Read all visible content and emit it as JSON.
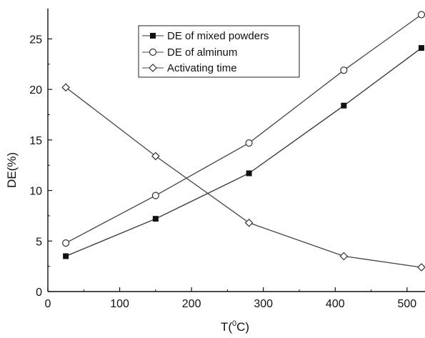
{
  "chart_data": {
    "type": "line",
    "title": "",
    "xlabel_main": "T(",
    "xlabel_sup": "0",
    "xlabel_tail": "C)",
    "ylabel": "DE(%)",
    "xlim": [
      0,
      525
    ],
    "ylim": [
      0,
      28
    ],
    "xticks": [
      0,
      100,
      200,
      300,
      400,
      500
    ],
    "yticks": [
      0,
      5,
      10,
      15,
      20,
      25
    ],
    "grid": false,
    "legend_position": "top-center",
    "series": [
      {
        "name": "DE of mixed powders",
        "marker": "filled-square",
        "color": "#333333",
        "x": [
          25,
          150,
          280,
          412,
          520
        ],
        "y": [
          3.5,
          7.2,
          11.7,
          18.4,
          24.1
        ]
      },
      {
        "name": "DE of alminum",
        "marker": "open-circle",
        "color": "#444444",
        "x": [
          25,
          150,
          280,
          412,
          520
        ],
        "y": [
          4.8,
          9.5,
          14.7,
          21.9,
          27.4
        ]
      },
      {
        "name": "Activating time",
        "marker": "open-diamond",
        "color": "#444444",
        "x": [
          25,
          150,
          280,
          412,
          520
        ],
        "y": [
          20.2,
          13.4,
          6.8,
          3.5,
          2.4
        ]
      }
    ]
  }
}
